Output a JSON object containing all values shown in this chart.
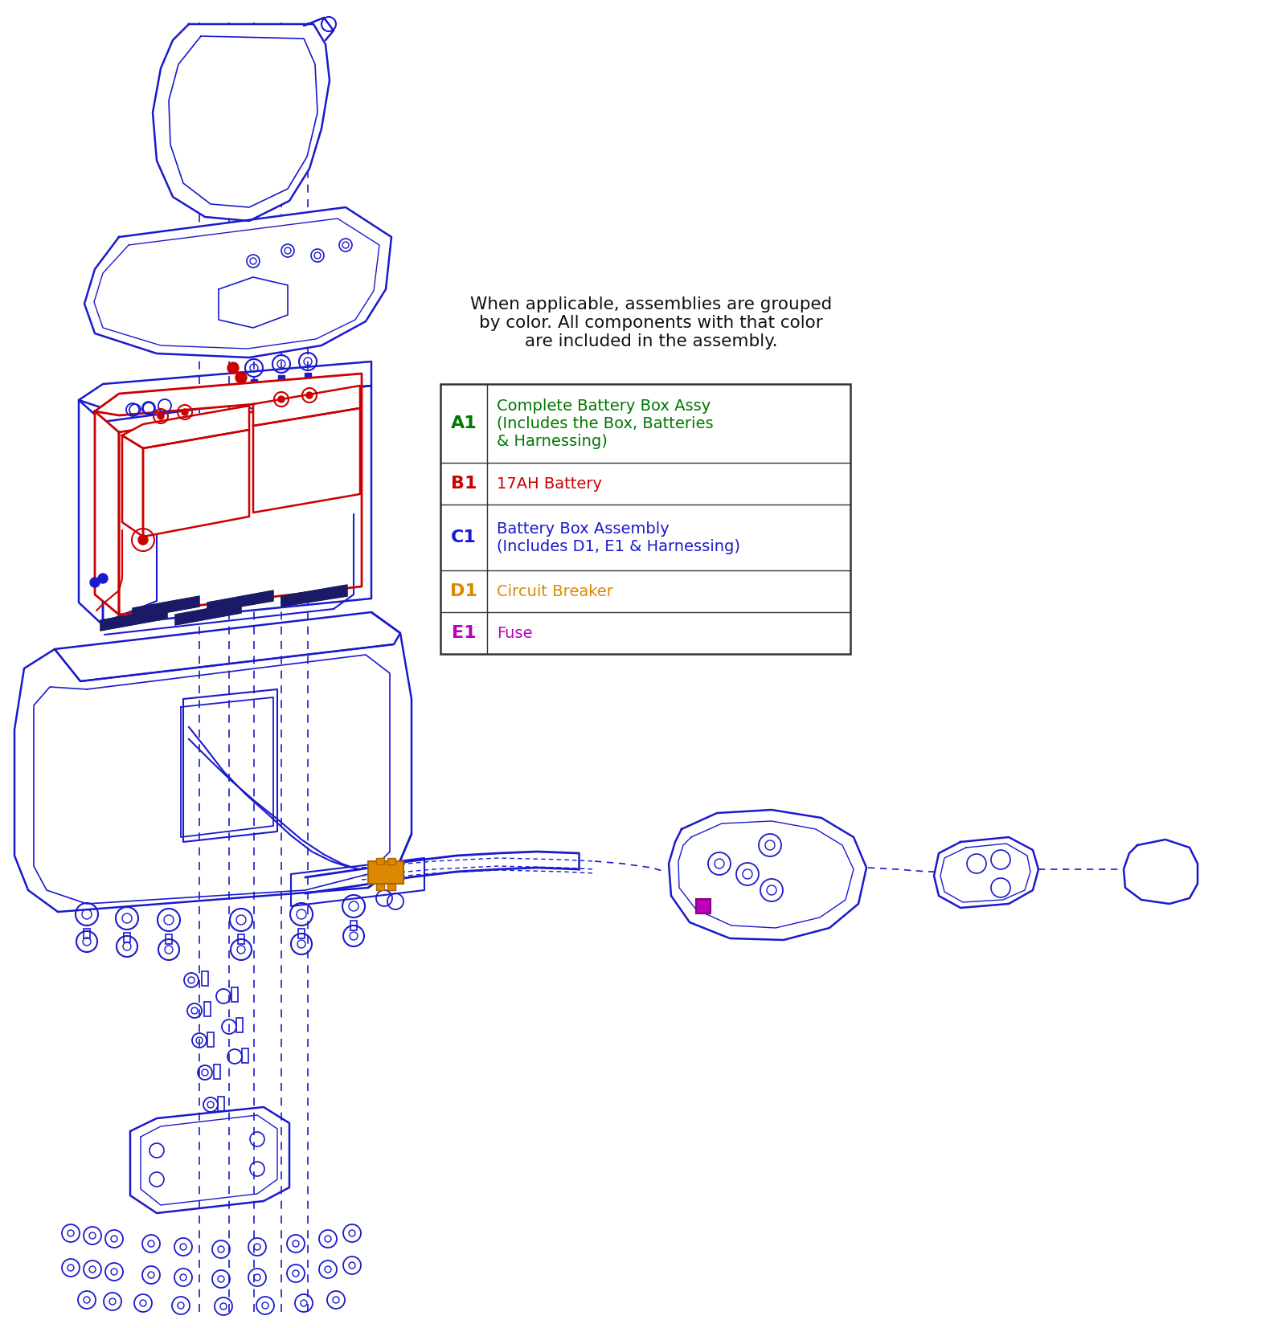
{
  "bg_color": "#ffffff",
  "diagram_color": "#1a1acd",
  "red_color": "#cc0000",
  "green_color": "#007700",
  "orange_color": "#dd8800",
  "purple_color": "#bb00bb",
  "dark_navy": "#1a1a66",
  "description_text": "When applicable, assemblies are grouped\nby color. All components with that color\nare included in the assembly.",
  "table_entries": [
    {
      "code": "A1",
      "code_color": "#007700",
      "description": "Complete Battery Box Assy\n(Includes the Box, Batteries\n& Harnessing)",
      "desc_color": "#007700"
    },
    {
      "code": "B1",
      "code_color": "#cc0000",
      "description": "17AH Battery",
      "desc_color": "#cc0000"
    },
    {
      "code": "C1",
      "code_color": "#1a1acd",
      "description": "Battery Box Assembly\n(Includes D1, E1 & Harnessing)",
      "desc_color": "#1a1acd"
    },
    {
      "code": "D1",
      "code_color": "#dd8800",
      "description": "Circuit Breaker",
      "desc_color": "#dd8800"
    },
    {
      "code": "E1",
      "code_color": "#bb00bb",
      "description": "Fuse",
      "desc_color": "#bb00bb"
    }
  ],
  "figsize": [
    16.0,
    16.53
  ],
  "dpi": 100
}
